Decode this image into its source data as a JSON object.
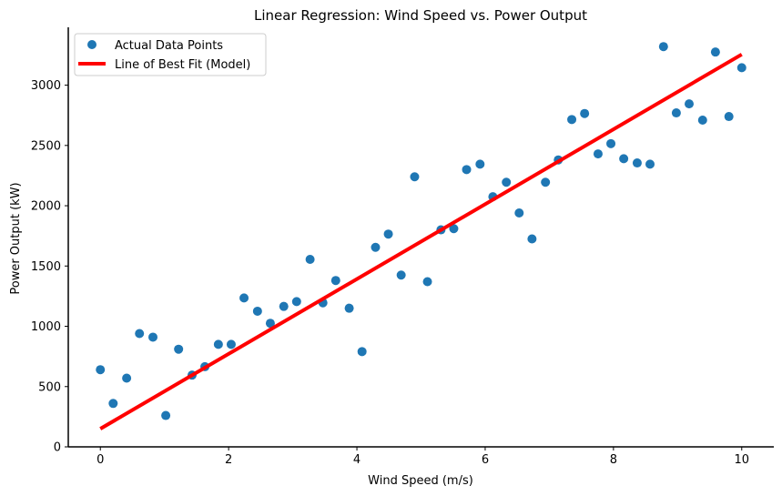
{
  "chart_data": {
    "type": "scatter",
    "title": "Linear Regression: Wind Speed vs. Power Output",
    "xlabel": "Wind Speed (m/s)",
    "ylabel": "Power Output (kW)",
    "xlim": [
      -0.5,
      10.5
    ],
    "ylim": [
      0,
      3480
    ],
    "xticks": [
      0,
      2,
      4,
      6,
      8,
      10
    ],
    "yticks": [
      0,
      500,
      1000,
      1500,
      2000,
      2500,
      3000
    ],
    "grid": false,
    "legend_position": "top-left",
    "series": [
      {
        "name": "Actual Data Points",
        "kind": "scatter",
        "color": "#1f77b4",
        "points": [
          [
            0.0,
            640
          ],
          [
            0.2,
            360
          ],
          [
            0.41,
            570
          ],
          [
            0.61,
            940
          ],
          [
            0.82,
            910
          ],
          [
            1.02,
            260
          ],
          [
            1.22,
            810
          ],
          [
            1.43,
            595
          ],
          [
            1.63,
            665
          ],
          [
            1.84,
            850
          ],
          [
            2.04,
            850
          ],
          [
            2.24,
            1235
          ],
          [
            2.45,
            1125
          ],
          [
            2.65,
            1025
          ],
          [
            2.86,
            1165
          ],
          [
            3.06,
            1205
          ],
          [
            3.27,
            1555
          ],
          [
            3.47,
            1195
          ],
          [
            3.67,
            1380
          ],
          [
            3.88,
            1150
          ],
          [
            4.08,
            790
          ],
          [
            4.29,
            1655
          ],
          [
            4.49,
            1765
          ],
          [
            4.69,
            1425
          ],
          [
            4.9,
            2240
          ],
          [
            5.1,
            1370
          ],
          [
            5.31,
            1800
          ],
          [
            5.51,
            1810
          ],
          [
            5.71,
            2300
          ],
          [
            5.92,
            2345
          ],
          [
            6.12,
            2075
          ],
          [
            6.33,
            2195
          ],
          [
            6.53,
            1940
          ],
          [
            6.73,
            1725
          ],
          [
            6.94,
            2195
          ],
          [
            7.14,
            2380
          ],
          [
            7.35,
            2715
          ],
          [
            7.55,
            2765
          ],
          [
            7.76,
            2430
          ],
          [
            7.96,
            2515
          ],
          [
            8.16,
            2390
          ],
          [
            8.37,
            2355
          ],
          [
            8.57,
            2345
          ],
          [
            8.78,
            3320
          ],
          [
            8.98,
            2770
          ],
          [
            9.18,
            2845
          ],
          [
            9.39,
            2710
          ],
          [
            9.59,
            3275
          ],
          [
            9.8,
            2740
          ],
          [
            10.0,
            3145
          ]
        ]
      },
      {
        "name": "Line of Best Fit (Model)",
        "kind": "line",
        "color": "#ff0000",
        "points": [
          [
            0,
            150
          ],
          [
            10,
            3255
          ]
        ]
      }
    ]
  }
}
